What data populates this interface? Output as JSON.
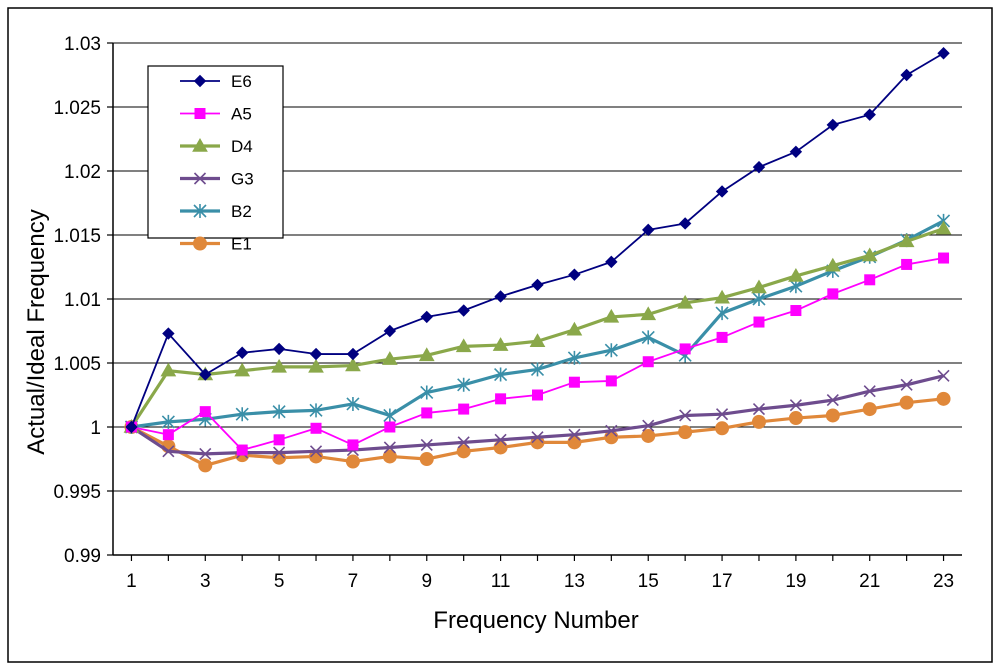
{
  "chart_data": {
    "type": "line",
    "title": "",
    "xlabel": "Frequency Number",
    "ylabel": "Actual/Ideal Frequency",
    "x": [
      1,
      2,
      3,
      4,
      5,
      6,
      7,
      8,
      9,
      10,
      11,
      12,
      13,
      14,
      15,
      16,
      17,
      18,
      19,
      20,
      21,
      22,
      23
    ],
    "xticks": [
      "1",
      "3",
      "5",
      "7",
      "9",
      "11",
      "13",
      "15",
      "17",
      "19",
      "21",
      "23"
    ],
    "xtick_values": [
      1,
      3,
      5,
      7,
      9,
      11,
      13,
      15,
      17,
      19,
      21,
      23
    ],
    "yticks": [
      "0.99",
      "0.995",
      "1",
      "1.005",
      "1.01",
      "1.015",
      "1.02",
      "1.025",
      "1.03"
    ],
    "ytick_values": [
      0.99,
      0.995,
      1,
      1.005,
      1.01,
      1.015,
      1.02,
      1.025,
      1.03
    ],
    "xlim": [
      0.5,
      23.5
    ],
    "ylim": [
      0.99,
      1.03
    ],
    "grid": "horizontal",
    "legend_position": "top-left",
    "series": [
      {
        "name": "E6",
        "color": "#000080",
        "marker": "diamond",
        "values": [
          1.0,
          1.0073,
          1.0041,
          1.0058,
          1.0061,
          1.0057,
          1.0057,
          1.0075,
          1.0086,
          1.0091,
          1.0102,
          1.0111,
          1.0119,
          1.0129,
          1.0154,
          1.0159,
          1.0184,
          1.0203,
          1.0215,
          1.0236,
          1.0244,
          1.0275,
          1.0292
        ]
      },
      {
        "name": "A5",
        "color": "#FF00FF",
        "marker": "square",
        "values": [
          1.0,
          0.9994,
          1.0012,
          0.9982,
          0.999,
          0.9999,
          0.9986,
          1.0,
          1.0011,
          1.0014,
          1.0022,
          1.0025,
          1.0035,
          1.0036,
          1.0051,
          1.0061,
          1.007,
          1.0082,
          1.0091,
          1.0104,
          1.0115,
          1.0127,
          1.0132
        ]
      },
      {
        "name": "D4",
        "color": "#8AA84A",
        "marker": "triangle",
        "values": [
          1.0,
          1.0044,
          1.0041,
          1.0044,
          1.0047,
          1.0047,
          1.0048,
          1.0053,
          1.0056,
          1.0063,
          1.0064,
          1.0067,
          1.0076,
          1.0086,
          1.0088,
          1.0097,
          1.0101,
          1.0109,
          1.0118,
          1.0126,
          1.0134,
          1.0145,
          1.0155
        ]
      },
      {
        "name": "G3",
        "color": "#6E4C8E",
        "marker": "x",
        "values": [
          1.0,
          0.9981,
          0.9979,
          0.998,
          0.998,
          0.9981,
          0.9982,
          0.9984,
          0.9986,
          0.9988,
          0.999,
          0.9992,
          0.9994,
          0.9997,
          1.0001,
          1.0009,
          1.001,
          1.0014,
          1.0017,
          1.0021,
          1.0028,
          1.0033,
          1.004
        ]
      },
      {
        "name": "B2",
        "color": "#3A8FA8",
        "marker": "star",
        "values": [
          1.0,
          1.0004,
          1.0006,
          1.001,
          1.0012,
          1.0013,
          1.0018,
          1.0009,
          1.0027,
          1.0033,
          1.0041,
          1.0045,
          1.0054,
          1.006,
          1.007,
          1.0056,
          1.0089,
          1.01,
          1.011,
          1.0122,
          1.0133,
          1.0146,
          1.0161
        ]
      },
      {
        "name": "E1",
        "color": "#E0883A",
        "marker": "circle",
        "values": [
          1.0,
          0.9985,
          0.997,
          0.9978,
          0.9976,
          0.9977,
          0.9973,
          0.9977,
          0.9975,
          0.9981,
          0.9984,
          0.9988,
          0.9988,
          0.9992,
          0.9993,
          0.9996,
          0.9999,
          1.0004,
          1.0007,
          1.0009,
          1.0014,
          1.0019,
          1.0022
        ]
      }
    ]
  }
}
